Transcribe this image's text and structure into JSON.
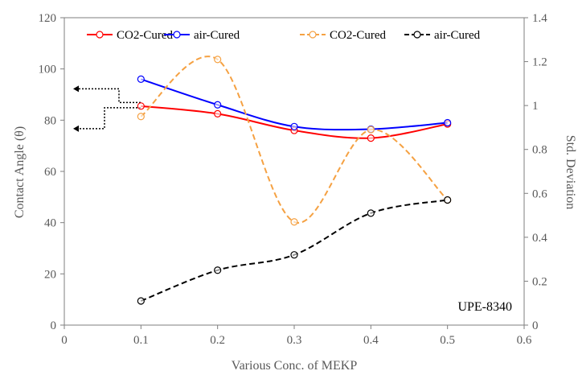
{
  "chart_data": {
    "type": "line",
    "x": [
      0.1,
      0.2,
      0.3,
      0.4,
      0.5
    ],
    "xlabel": "Various Conc. of MEKP",
    "ylabel": "Contact Angle (θ)",
    "y2label": "Std. Deviation",
    "xlim": [
      0,
      0.6
    ],
    "ylim": [
      0,
      120
    ],
    "y2lim": [
      0,
      1.4
    ],
    "xticks": [
      "0",
      "0.1",
      "0.2",
      "0.3",
      "0.4",
      "0.5",
      "0.6"
    ],
    "yticks": [
      "0",
      "20",
      "40",
      "60",
      "80",
      "100",
      "120"
    ],
    "y2ticks": [
      "0",
      "0.2",
      "0.4",
      "0.6",
      "0.8",
      "1",
      "1.2",
      "1.4"
    ],
    "grid": false,
    "legend_position": "top",
    "annotation": "UPE-8340",
    "series": [
      {
        "name": "CO2-Cured",
        "axis": "left",
        "color": "#ff0000",
        "dash": "solid",
        "values": [
          85.5,
          82.5,
          76,
          73,
          78.5
        ]
      },
      {
        "name": "air-Cured",
        "axis": "left",
        "color": "#0000ff",
        "dash": "solid",
        "values": [
          96,
          86,
          77.5,
          76.5,
          79
        ]
      },
      {
        "name": "CO2-Cured",
        "axis": "right",
        "color": "#f5a142",
        "dash": "dashed",
        "values": [
          0.95,
          1.21,
          0.47,
          0.89,
          0.57
        ]
      },
      {
        "name": "air-Cured",
        "axis": "right",
        "color": "#000000",
        "dash": "dashed",
        "values": [
          0.11,
          0.25,
          0.32,
          0.51,
          0.57
        ]
      }
    ]
  }
}
